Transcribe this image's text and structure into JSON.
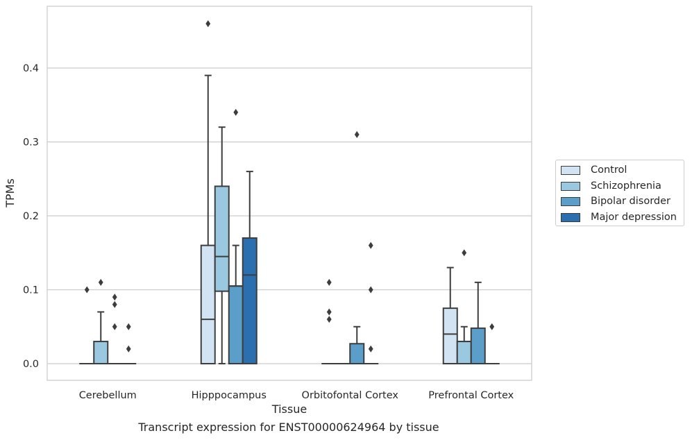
{
  "caption": "Transcript expression for ENST00000624964 by tissue",
  "chart_data": {
    "type": "box",
    "xlabel": "Tissue",
    "ylabel": "TPMs",
    "ylim": [
      -0.022,
      0.485
    ],
    "yticks": [
      0.0,
      0.1,
      0.2,
      0.3,
      0.4
    ],
    "ytick_labels": [
      "0.0",
      "0.1",
      "0.2",
      "0.3",
      "0.4"
    ],
    "grid": "horizontal",
    "legend_position": "outside right",
    "categories": [
      "Cerebellum",
      "Hipppocampus",
      "Orbitofontal Cortex",
      "Prefrontal Cortex"
    ],
    "series": [
      {
        "name": "Control",
        "color": "#d2e3f3",
        "boxes": [
          {
            "q1": 0,
            "median": 0,
            "q3": 0,
            "whislo": 0,
            "whishi": 0,
            "fliers": [
              0.1
            ]
          },
          {
            "q1": 0,
            "median": 0.06,
            "q3": 0.16,
            "whislo": 0,
            "whishi": 0.39,
            "fliers": [
              0.46
            ]
          },
          {
            "q1": 0,
            "median": 0,
            "q3": 0,
            "whislo": 0,
            "whishi": 0,
            "fliers": [
              0.11,
              0.07,
              0.06
            ]
          },
          {
            "q1": 0,
            "median": 0.04,
            "q3": 0.075,
            "whislo": 0,
            "whishi": 0.13,
            "fliers": []
          }
        ]
      },
      {
        "name": "Schizophrenia",
        "color": "#9ac8e0",
        "boxes": [
          {
            "q1": 0,
            "median": 0,
            "q3": 0.03,
            "whislo": 0,
            "whishi": 0.07,
            "fliers": [
              0.11
            ]
          },
          {
            "q1": 0.098,
            "median": 0.145,
            "q3": 0.24,
            "whislo": 0,
            "whishi": 0.32,
            "fliers": []
          },
          {
            "q1": 0,
            "median": 0,
            "q3": 0,
            "whislo": 0,
            "whishi": 0,
            "fliers": []
          },
          {
            "q1": 0,
            "median": 0.03,
            "q3": 0.03,
            "whislo": 0,
            "whishi": 0.05,
            "fliers": [
              0.15
            ]
          }
        ]
      },
      {
        "name": "Bipolar disorder",
        "color": "#5a9ec9",
        "boxes": [
          {
            "q1": 0,
            "median": 0,
            "q3": 0,
            "whislo": 0,
            "whishi": 0,
            "fliers": [
              0.09,
              0.08,
              0.05
            ]
          },
          {
            "q1": 0,
            "median": 0.105,
            "q3": 0.105,
            "whislo": 0,
            "whishi": 0.16,
            "fliers": [
              0.34
            ]
          },
          {
            "q1": 0,
            "median": 0,
            "q3": 0.027,
            "whislo": 0,
            "whishi": 0.05,
            "fliers": [
              0.31
            ]
          },
          {
            "q1": 0,
            "median": 0,
            "q3": 0.048,
            "whislo": 0,
            "whishi": 0.11,
            "fliers": []
          }
        ]
      },
      {
        "name": "Major depression",
        "color": "#2c6fb0",
        "boxes": [
          {
            "q1": 0,
            "median": 0,
            "q3": 0,
            "whislo": 0,
            "whishi": 0,
            "fliers": [
              0.05,
              0.02
            ]
          },
          {
            "q1": 0,
            "median": 0.12,
            "q3": 0.17,
            "whislo": 0,
            "whishi": 0.26,
            "fliers": []
          },
          {
            "q1": 0,
            "median": 0,
            "q3": 0,
            "whislo": 0,
            "whishi": 0,
            "fliers": [
              0.16,
              0.1,
              0.02
            ]
          },
          {
            "q1": 0,
            "median": 0,
            "q3": 0,
            "whislo": 0,
            "whishi": 0,
            "fliers": [
              0.05
            ]
          }
        ]
      }
    ]
  }
}
